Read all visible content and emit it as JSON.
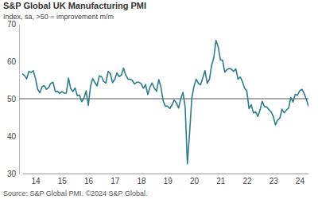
{
  "chart_data": {
    "type": "line",
    "title": "S&P Global UK Manufacturing PMI",
    "subtitle": "Index, sa, >50 = improvement m/m",
    "source": "Source: S&P Global PMI. ©2024 S&P Global.",
    "categories": [
      null,
      null,
      null,
      null,
      null,
      null,
      "14",
      null,
      null,
      null,
      null,
      null,
      null,
      null,
      null,
      null,
      null,
      null,
      "15",
      null,
      null,
      null,
      null,
      null,
      null,
      null,
      null,
      null,
      null,
      null,
      "16",
      null,
      null,
      null,
      null,
      null,
      null,
      null,
      null,
      null,
      null,
      null,
      "17",
      null,
      null,
      null,
      null,
      null,
      null,
      null,
      null,
      null,
      null,
      null,
      "18",
      null,
      null,
      null,
      null,
      null,
      null,
      null,
      null,
      null,
      null,
      null,
      "19",
      null,
      null,
      null,
      null,
      null,
      null,
      null,
      null,
      null,
      null,
      null,
      "20",
      null,
      null,
      null,
      null,
      null,
      null,
      null,
      null,
      null,
      null,
      null,
      "21",
      null,
      null,
      null,
      null,
      null,
      null,
      null,
      null,
      null,
      null,
      null,
      "22",
      null,
      null,
      null,
      null,
      null,
      null,
      null,
      null,
      null,
      null,
      null,
      "23",
      null,
      null,
      null,
      null,
      null,
      null,
      null,
      null,
      null,
      null,
      null,
      "24",
      null,
      null,
      null,
      null
    ],
    "values": [
      56.7,
      56.2,
      55.3,
      57.3,
      57.0,
      57.5,
      55.4,
      52.5,
      51.6,
      53.2,
      53.5,
      52.5,
      53.0,
      54.1,
      54.4,
      51.9,
      52.0,
      51.4,
      51.9,
      51.5,
      51.5,
      55.5,
      52.7,
      51.9,
      52.9,
      50.8,
      51.0,
      49.2,
      50.1,
      52.1,
      48.2,
      53.3,
      55.4,
      54.3,
      53.4,
      56.1,
      55.9,
      54.6,
      54.2,
      57.3,
      56.7,
      54.3,
      55.1,
      56.9,
      55.9,
      56.3,
      58.2,
      56.3,
      55.3,
      55.2,
      54.9,
      53.9,
      54.4,
      54.4,
      54.0,
      52.8,
      53.8,
      51.1,
      53.1,
      54.2,
      52.8,
      52.0,
      55.1,
      53.1,
      49.4,
      48.0,
      48.0,
      47.4,
      48.3,
      49.6,
      48.9,
      47.5,
      50.0,
      51.7,
      47.8,
      32.6,
      40.7,
      50.1,
      53.3,
      55.2,
      54.1,
      53.7,
      55.6,
      57.5,
      54.1,
      55.1,
      58.9,
      60.9,
      65.6,
      63.9,
      60.4,
      60.3,
      57.1,
      57.8,
      58.1,
      57.9,
      57.3,
      58.0,
      55.2,
      55.8,
      54.6,
      52.8,
      52.1,
      47.3,
      48.4,
      46.2,
      46.5,
      45.3,
      47.0,
      49.3,
      47.9,
      47.8,
      47.1,
      46.5,
      45.3,
      43.0,
      44.3,
      44.8,
      47.2,
      46.2,
      47.0,
      47.5,
      50.3,
      49.1,
      51.2,
      50.9,
      52.1,
      52.5,
      51.5,
      49.9,
      48.0
    ],
    "color": "#2b7d8e",
    "ylim": [
      30,
      70
    ],
    "yticks": [
      30,
      40,
      50,
      60,
      70
    ],
    "threshold": 50,
    "grid": false
  }
}
